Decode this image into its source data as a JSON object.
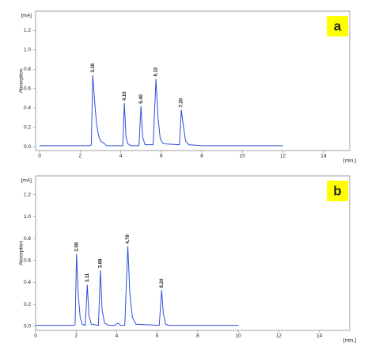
{
  "chart_data": [
    {
      "type": "line",
      "label": "a",
      "ylabel": "Absorption",
      "yunit": "[mA]",
      "xunit": "[min.]",
      "color": "#2f4fd8",
      "x": [
        0,
        2.5,
        2.55,
        2.62,
        2.7,
        2.8,
        2.9,
        3.0,
        3.2,
        3.3,
        4.1,
        4.18,
        4.26,
        4.35,
        4.5,
        4.9,
        5.0,
        5.08,
        5.2,
        5.6,
        5.74,
        5.84,
        5.95,
        6.1,
        6.9,
        6.99,
        7.1,
        7.2,
        7.35,
        8,
        12
      ],
      "values": [
        0.01,
        0.01,
        0.02,
        0.74,
        0.5,
        0.25,
        0.12,
        0.06,
        0.03,
        0.01,
        0.01,
        0.45,
        0.1,
        0.03,
        0.01,
        0.01,
        0.42,
        0.1,
        0.02,
        0.02,
        0.7,
        0.3,
        0.08,
        0.03,
        0.02,
        0.38,
        0.2,
        0.06,
        0.02,
        0.01,
        0.01
      ],
      "annotations": [
        "3.18",
        "4.15",
        "5.40",
        "6.12",
        "7.20"
      ],
      "xlim": [
        -0.2,
        15.3
      ],
      "ylim": [
        -0.04,
        1.4
      ],
      "xticks": [
        0,
        2,
        4,
        6,
        8,
        10,
        12,
        14
      ],
      "yticks": [
        {
          "value": 0,
          "label": "0.0"
        },
        0.2,
        0.4,
        0.6,
        0.8,
        {
          "value": 1,
          "label": "1.0"
        },
        1.2
      ]
    },
    {
      "type": "line",
      "label": "b",
      "ylabel": "Absorption",
      "yunit": "[mA]",
      "xunit": "[min.]",
      "color": "#2f4fd8",
      "x": [
        0,
        1.9,
        1.95,
        2.02,
        2.1,
        2.2,
        2.3,
        2.45,
        2.55,
        2.63,
        2.75,
        3.1,
        3.2,
        3.28,
        3.4,
        3.6,
        3.9,
        4.05,
        4.2,
        4.4,
        4.55,
        4.65,
        4.78,
        4.95,
        6.1,
        6.22,
        6.3,
        6.42,
        6.6,
        10
      ],
      "values": [
        0.01,
        0.01,
        0.02,
        0.66,
        0.3,
        0.08,
        0.02,
        0.01,
        0.38,
        0.1,
        0.02,
        0.01,
        0.51,
        0.15,
        0.03,
        0.01,
        0.01,
        0.03,
        0.01,
        0.01,
        0.73,
        0.3,
        0.08,
        0.02,
        0.01,
        0.33,
        0.12,
        0.02,
        0.01,
        0.01
      ],
      "annotations": [
        "2.08",
        "3.11",
        "3.69",
        "4.79",
        "6.20"
      ],
      "xlim": [
        0,
        15.5
      ],
      "ylim": [
        -0.036,
        1.37
      ],
      "xticks": [
        0,
        2,
        4,
        6,
        8,
        10,
        12,
        14
      ],
      "yticks": [
        {
          "value": 0,
          "label": "0.0"
        },
        0.2,
        0.4,
        0.6,
        0.8,
        {
          "value": 1,
          "label": "1.0"
        },
        1.2
      ]
    }
  ]
}
